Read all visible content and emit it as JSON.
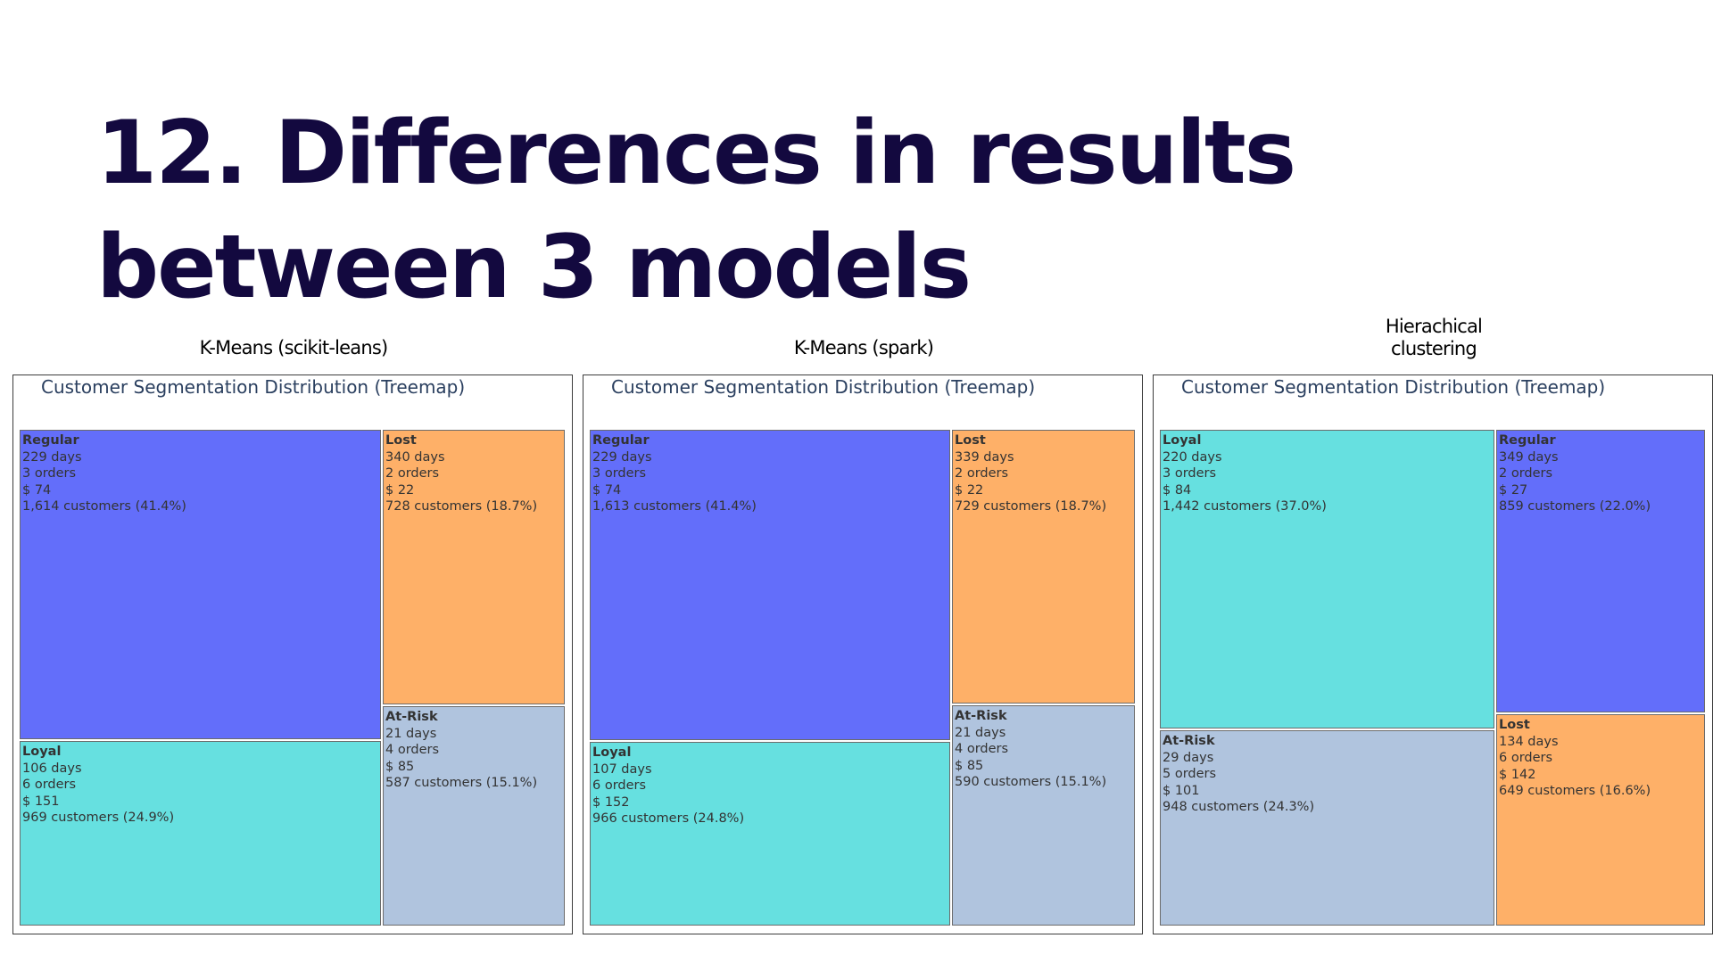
{
  "slide": {
    "title": "12. Differences in results between 3 models"
  },
  "colors": {
    "Regular": "#636efa",
    "Lost": "#feb068",
    "Loyal": "#66e0e0",
    "At-Risk": "#b0c4de"
  },
  "panels": [
    {
      "caption": "K-Means (scikit-leans)"
    },
    {
      "caption": "K-Means (spark)"
    },
    {
      "caption": "Hierachical\nclustering"
    }
  ],
  "chart_data": [
    {
      "type": "treemap",
      "title": "Customer Segmentation Distribution (Treemap)",
      "segments": [
        {
          "name": "Regular",
          "days": "229 days",
          "orders": "3 orders",
          "monetary": "$ 74",
          "customers_label": "1,614 customers (41.4%)",
          "customers": 1614
        },
        {
          "name": "Lost",
          "days": "340 days",
          "orders": "2 orders",
          "monetary": "$ 22",
          "customers_label": "728 customers (18.7%)",
          "customers": 728
        },
        {
          "name": "Loyal",
          "days": "106 days",
          "orders": "6 orders",
          "monetary": "$ 151",
          "customers_label": "969 customers (24.9%)",
          "customers": 969
        },
        {
          "name": "At-Risk",
          "days": "21 days",
          "orders": "4 orders",
          "monetary": "$ 85",
          "customers_label": "587 customers (15.1%)",
          "customers": 587
        }
      ]
    },
    {
      "type": "treemap",
      "title": "Customer Segmentation Distribution (Treemap)",
      "segments": [
        {
          "name": "Regular",
          "days": "229 days",
          "orders": "3 orders",
          "monetary": "$ 74",
          "customers_label": "1,613 customers (41.4%)",
          "customers": 1613
        },
        {
          "name": "Lost",
          "days": "339 days",
          "orders": "2 orders",
          "monetary": "$ 22",
          "customers_label": "729 customers (18.7%)",
          "customers": 729
        },
        {
          "name": "Loyal",
          "days": "107 days",
          "orders": "6 orders",
          "monetary": "$ 152",
          "customers_label": "966 customers (24.8%)",
          "customers": 966
        },
        {
          "name": "At-Risk",
          "days": "21 days",
          "orders": "4 orders",
          "monetary": "$ 85",
          "customers_label": "590 customers (15.1%)",
          "customers": 590
        }
      ]
    },
    {
      "type": "treemap",
      "title": "Customer Segmentation Distribution (Treemap)",
      "segments": [
        {
          "name": "Loyal",
          "days": "220 days",
          "orders": "3 orders",
          "monetary": "$ 84",
          "customers_label": "1,442 customers (37.0%)",
          "customers": 1442
        },
        {
          "name": "Regular",
          "days": "349 days",
          "orders": "2 orders",
          "monetary": "$ 27",
          "customers_label": "859 customers (22.0%)",
          "customers": 859
        },
        {
          "name": "At-Risk",
          "days": "29 days",
          "orders": "5 orders",
          "monetary": "$ 101",
          "customers_label": "948 customers (24.3%)",
          "customers": 948
        },
        {
          "name": "Lost",
          "days": "134 days",
          "orders": "6 orders",
          "monetary": "$ 142",
          "customers_label": "649 customers (16.6%)",
          "customers": 649
        }
      ]
    }
  ]
}
